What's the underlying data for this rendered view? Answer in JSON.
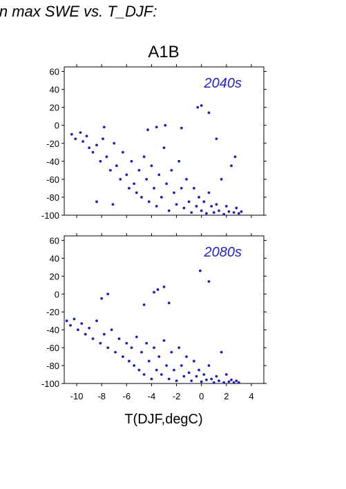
{
  "header": {
    "title": "in max SWE vs. T_DJF:"
  },
  "figure": {
    "scenario_label": "A1B",
    "xlabel": "T(DJF,degC)"
  },
  "colors": {
    "points": "#1f1fb4",
    "panel_label": "#2424b8"
  },
  "chart_data": [
    {
      "type": "scatter",
      "panel_label": "2040s",
      "xlim": [
        -11,
        5
      ],
      "ylim": [
        -100,
        65
      ],
      "xticks": [
        -10,
        -8,
        -6,
        -4,
        -2,
        0,
        2,
        4
      ],
      "yticks": [
        -100,
        -80,
        -60,
        -40,
        -20,
        0,
        20,
        40,
        60
      ],
      "xlabel": "",
      "series": [
        {
          "name": "",
          "x": [
            -10.4,
            -10.1,
            -9.7,
            -9.5,
            -9.2,
            -9.0,
            -8.7,
            -8.4,
            -8.1,
            -7.9,
            -7.6,
            -7.3,
            -7.0,
            -6.8,
            -6.5,
            -6.3,
            -6.0,
            -5.8,
            -5.6,
            -5.4,
            -5.2,
            -5.0,
            -4.8,
            -4.6,
            -4.4,
            -4.2,
            -4.0,
            -3.8,
            -3.6,
            -3.4,
            -3.2,
            -3.0,
            -2.8,
            -2.6,
            -2.4,
            -2.2,
            -2.0,
            -1.8,
            -1.6,
            -1.4,
            -1.2,
            -1.0,
            -0.8,
            -0.6,
            -0.4,
            -0.2,
            0.0,
            0.2,
            0.4,
            0.6,
            0.8,
            1.0,
            1.2,
            1.4,
            1.6,
            1.8,
            2.0,
            2.2,
            2.4,
            2.6,
            2.8,
            3.0,
            3.2,
            -0.3,
            0.0,
            0.6,
            -4.3,
            -3.6,
            -2.9,
            -1.6,
            1.2,
            2.7,
            -7.8,
            -8.4,
            -7.1
          ],
          "y": [
            -10,
            -15,
            -8,
            -18,
            -12,
            -25,
            -30,
            -22,
            -40,
            -15,
            -35,
            -50,
            -20,
            -45,
            -60,
            -30,
            -55,
            -70,
            -40,
            -65,
            -75,
            -50,
            -80,
            -35,
            -60,
            -85,
            -45,
            -70,
            -90,
            -55,
            -80,
            -25,
            -65,
            -95,
            -50,
            -75,
            -88,
            -40,
            -70,
            -92,
            -60,
            -85,
            -97,
            -70,
            -90,
            -80,
            -95,
            -85,
            -98,
            -75,
            -90,
            -97,
            -88,
            -95,
            -60,
            -99,
            -90,
            -96,
            -45,
            -97,
            -92,
            -98,
            -96,
            20,
            22,
            14,
            -5,
            -2,
            0,
            -3,
            -15,
            -35,
            -2,
            -85,
            -88
          ]
        }
      ]
    },
    {
      "type": "scatter",
      "panel_label": "2080s",
      "xlim": [
        -11,
        5
      ],
      "ylim": [
        -100,
        65
      ],
      "xticks": [
        -10,
        -8,
        -6,
        -4,
        -2,
        0,
        2,
        4
      ],
      "yticks": [
        -100,
        -80,
        -60,
        -40,
        -20,
        0,
        20,
        40,
        60
      ],
      "xlabel": "T(DJF,degC)",
      "series": [
        {
          "name": "",
          "x": [
            -10.8,
            -10.5,
            -10.2,
            -9.9,
            -9.6,
            -9.3,
            -9.0,
            -8.7,
            -8.4,
            -8.1,
            -7.8,
            -7.5,
            -7.2,
            -6.9,
            -6.6,
            -6.3,
            -6.0,
            -5.8,
            -5.6,
            -5.4,
            -5.2,
            -5.0,
            -4.8,
            -4.6,
            -4.4,
            -4.2,
            -4.0,
            -3.8,
            -3.6,
            -3.4,
            -3.2,
            -3.0,
            -2.8,
            -2.6,
            -2.4,
            -2.2,
            -2.0,
            -1.8,
            -1.6,
            -1.4,
            -1.2,
            -1.0,
            -0.8,
            -0.6,
            -0.4,
            -0.2,
            0.0,
            0.2,
            0.4,
            0.6,
            0.8,
            1.0,
            1.2,
            1.4,
            1.6,
            1.8,
            2.0,
            2.2,
            2.4,
            2.6,
            2.8,
            3.0,
            -0.1,
            0.6,
            -3.5,
            -3.0,
            -3.8,
            -2.6,
            -7.5,
            -8.0,
            -4.6
          ],
          "y": [
            -30,
            -35,
            -28,
            -40,
            -33,
            -45,
            -38,
            -50,
            -30,
            -55,
            -45,
            -60,
            -40,
            -65,
            -50,
            -70,
            -55,
            -75,
            -60,
            -80,
            -48,
            -85,
            -65,
            -90,
            -55,
            -75,
            -95,
            -60,
            -85,
            -70,
            -90,
            -52,
            -80,
            -95,
            -65,
            -85,
            -97,
            -60,
            -80,
            -92,
            -70,
            -88,
            -97,
            -75,
            -92,
            -85,
            -98,
            -90,
            -96,
            -80,
            -95,
            -99,
            -92,
            -97,
            -65,
            -99,
            -90,
            -98,
            -96,
            -99,
            -97,
            -99,
            26,
            14,
            5,
            8,
            2,
            -10,
            0,
            -5,
            -12
          ]
        }
      ]
    }
  ]
}
